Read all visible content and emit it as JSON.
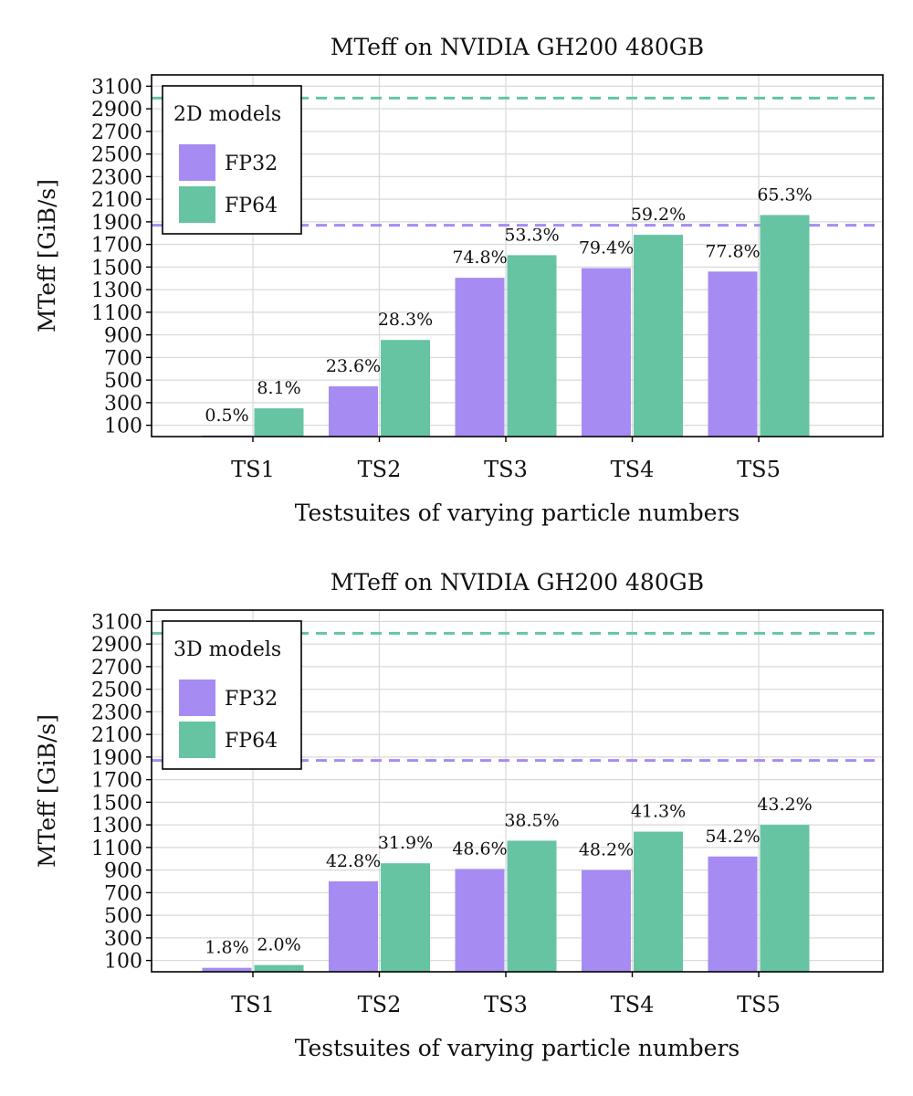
{
  "chart_data": [
    {
      "type": "bar",
      "title": "MTeff on NVIDIA GH200 480GB",
      "xlabel": "Testsuites of varying particle numbers",
      "ylabel": "MTeff [GiB/s]",
      "ylim": [
        0,
        3200
      ],
      "yticks": [
        100,
        300,
        500,
        700,
        900,
        1100,
        1300,
        1500,
        1700,
        1900,
        2100,
        2300,
        2500,
        2700,
        2900,
        3100
      ],
      "grid": true,
      "legend_position": "top-left",
      "legend_title": "2D models",
      "categories": [
        "TS1",
        "TS2",
        "TS3",
        "TS4",
        "TS5"
      ],
      "series": [
        {
          "name": "FP32",
          "color": "#a68bf2",
          "values": [
            10,
            445,
            1405,
            1490,
            1460
          ],
          "labels": [
            "0.5%",
            "23.6%",
            "74.8%",
            "79.4%",
            "77.8%"
          ]
        },
        {
          "name": "FP64",
          "color": "#66c4a3",
          "values": [
            250,
            855,
            1605,
            1785,
            1960
          ],
          "labels": [
            "8.1%",
            "28.3%",
            "53.3%",
            "59.2%",
            "65.3%"
          ]
        }
      ],
      "reference_lines": [
        {
          "series": "FP64",
          "value": 2995,
          "color": "#66c4a3"
        },
        {
          "series": "FP32",
          "value": 1870,
          "color": "#a68bf2"
        }
      ]
    },
    {
      "type": "bar",
      "title": "MTeff on NVIDIA GH200 480GB",
      "xlabel": "Testsuites of varying particle numbers",
      "ylabel": "MTeff [GiB/s]",
      "ylim": [
        0,
        3200
      ],
      "yticks": [
        100,
        300,
        500,
        700,
        900,
        1100,
        1300,
        1500,
        1700,
        1900,
        2100,
        2300,
        2500,
        2700,
        2900,
        3100
      ],
      "grid": true,
      "legend_position": "top-left",
      "legend_title": "3D models",
      "categories": [
        "TS1",
        "TS2",
        "TS3",
        "TS4",
        "TS5"
      ],
      "series": [
        {
          "name": "FP32",
          "color": "#a68bf2",
          "values": [
            35,
            800,
            910,
            900,
            1020
          ],
          "labels": [
            "1.8%",
            "42.8%",
            "48.6%",
            "48.2%",
            "54.2%"
          ]
        },
        {
          "name": "FP64",
          "color": "#66c4a3",
          "values": [
            60,
            960,
            1160,
            1240,
            1300
          ],
          "labels": [
            "2.0%",
            "31.9%",
            "38.5%",
            "41.3%",
            "43.2%"
          ]
        }
      ],
      "reference_lines": [
        {
          "series": "FP64",
          "value": 2995,
          "color": "#66c4a3"
        },
        {
          "series": "FP32",
          "value": 1870,
          "color": "#a68bf2"
        }
      ]
    }
  ]
}
